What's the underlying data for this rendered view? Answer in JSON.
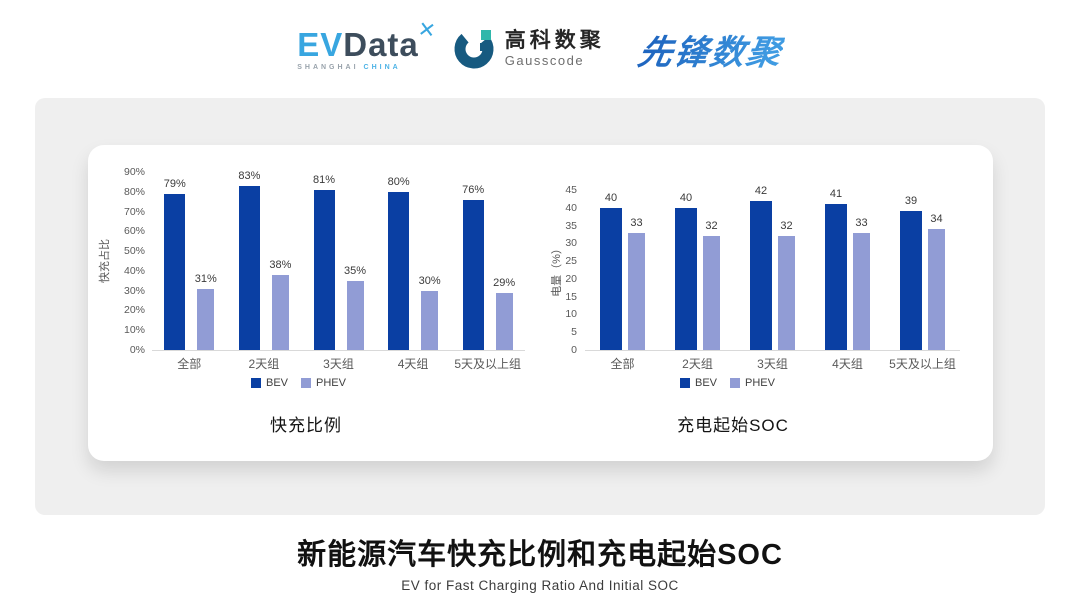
{
  "header": {
    "evdata": {
      "ev": "EV",
      "data": "Data",
      "spark_icon": "four-point-spark",
      "sub_shanghai": "SHANGHAI",
      "sub_china": "CHINA"
    },
    "gausscode": {
      "mark_icon": "g-ring-mark",
      "name_cn": "高科数聚",
      "name_en": "Gausscode"
    },
    "pioneer": {
      "name": "先锋数聚"
    }
  },
  "chart_data": [
    {
      "type": "bar",
      "title": "快充比例",
      "ylabel": "快充占比",
      "xlabel": "",
      "categories": [
        "全部",
        "2天组",
        "3天组",
        "4天组",
        "5天及以上组"
      ],
      "series": [
        {
          "name": "BEV",
          "color": "#0a3fa3",
          "values": [
            79,
            83,
            81,
            80,
            76
          ]
        },
        {
          "name": "PHEV",
          "color": "#919cd5",
          "values": [
            31,
            38,
            35,
            30,
            29
          ]
        }
      ],
      "ylim": [
        0,
        90
      ],
      "ytick_step": 10,
      "tick_suffix": "%",
      "value_suffix": "%",
      "grid": false,
      "legend_position": "bottom"
    },
    {
      "type": "bar",
      "title": "充电起始SOC",
      "ylabel": "电量（%）",
      "xlabel": "",
      "categories": [
        "全部",
        "2天组",
        "3天组",
        "4天组",
        "5天及以上组"
      ],
      "series": [
        {
          "name": "BEV",
          "color": "#0a3fa3",
          "values": [
            40,
            40,
            42,
            41,
            39
          ]
        },
        {
          "name": "PHEV",
          "color": "#919cd5",
          "values": [
            33,
            32,
            32,
            33,
            34
          ]
        }
      ],
      "ylim": [
        0,
        45
      ],
      "ytick_step": 5,
      "tick_suffix": "",
      "value_suffix": "",
      "grid": false,
      "legend_position": "bottom"
    }
  ],
  "footer": {
    "title": "新能源汽车快充比例和充电起始SOC",
    "subtitle": "EV for Fast Charging Ratio And Initial SOC"
  },
  "colors": {
    "bev": "#0a3fa3",
    "phev": "#919cd5",
    "panel_bg": "#efefef",
    "axis_text": "#595959"
  }
}
